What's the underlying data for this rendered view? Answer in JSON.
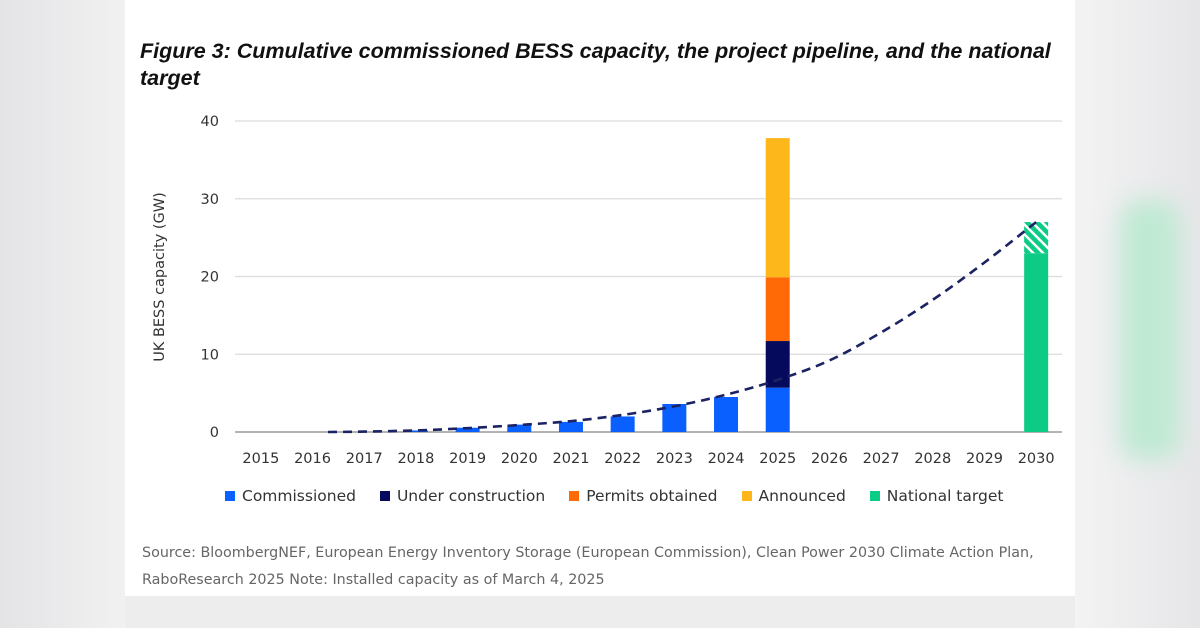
{
  "title": "Figure 3: Cumulative commissioned BESS capacity, the project pipeline, and the national target",
  "source": "Source: BloombergNEF, European Energy Inventory Storage (European Commission), Clean Power 2030 Climate Action Plan, RaboResearch 2025 Note: Installed capacity as of March 4, 2025",
  "chart_data": {
    "type": "bar",
    "stacked": true,
    "ylabel": "UK BESS  capacity (GW)",
    "xlabel": "",
    "ylim": [
      0,
      40
    ],
    "yticks": [
      0,
      10,
      20,
      30,
      40
    ],
    "grid": true,
    "legend_position": "bottom",
    "categories": [
      "2015",
      "2016",
      "2017",
      "2018",
      "2019",
      "2020",
      "2021",
      "2022",
      "2023",
      "2024",
      "2025",
      "2026",
      "2027",
      "2028",
      "2029",
      "2030"
    ],
    "series": [
      {
        "name": "Commissioned",
        "color": "#0a5fff",
        "values": [
          0,
          0,
          0,
          0.2,
          0.55,
          0.95,
          1.3,
          2.0,
          3.6,
          4.5,
          5.7,
          0,
          0,
          0,
          0,
          0
        ]
      },
      {
        "name": "Under construction",
        "color": "#060a5c",
        "values": [
          0,
          0,
          0,
          0,
          0,
          0,
          0,
          0,
          0,
          0,
          6.0,
          0,
          0,
          0,
          0,
          0
        ]
      },
      {
        "name": "Permits obtained",
        "color": "#ff6a06",
        "values": [
          0,
          0,
          0,
          0,
          0,
          0,
          0,
          0,
          0,
          0,
          8.2,
          0,
          0,
          0,
          0,
          0
        ]
      },
      {
        "name": "Announced",
        "color": "#fdb71a",
        "values": [
          0,
          0,
          0,
          0,
          0,
          0,
          0,
          0,
          0,
          0,
          17.9,
          0,
          0,
          0,
          0,
          0
        ]
      },
      {
        "name": "National target",
        "color": "#0ccb85",
        "values": [
          0,
          0,
          0,
          0,
          0,
          0,
          0,
          0,
          0,
          0,
          0,
          0,
          0,
          0,
          0,
          23
        ]
      }
    ],
    "target_range_hatched": {
      "year": "2030",
      "from": 23,
      "to": 27,
      "color": "#0ccb85"
    },
    "trend_line": {
      "style": "dashed",
      "color": "#1b2363",
      "x": [
        2016.3,
        2017,
        2018,
        2019,
        2020,
        2021,
        2022,
        2023,
        2024,
        2025,
        2026,
        2027,
        2028,
        2029,
        2030
      ],
      "y": [
        0,
        0.05,
        0.2,
        0.5,
        0.9,
        1.4,
        2.2,
        3.3,
        4.8,
        6.7,
        9.2,
        12.8,
        17.0,
        21.8,
        27
      ]
    }
  }
}
